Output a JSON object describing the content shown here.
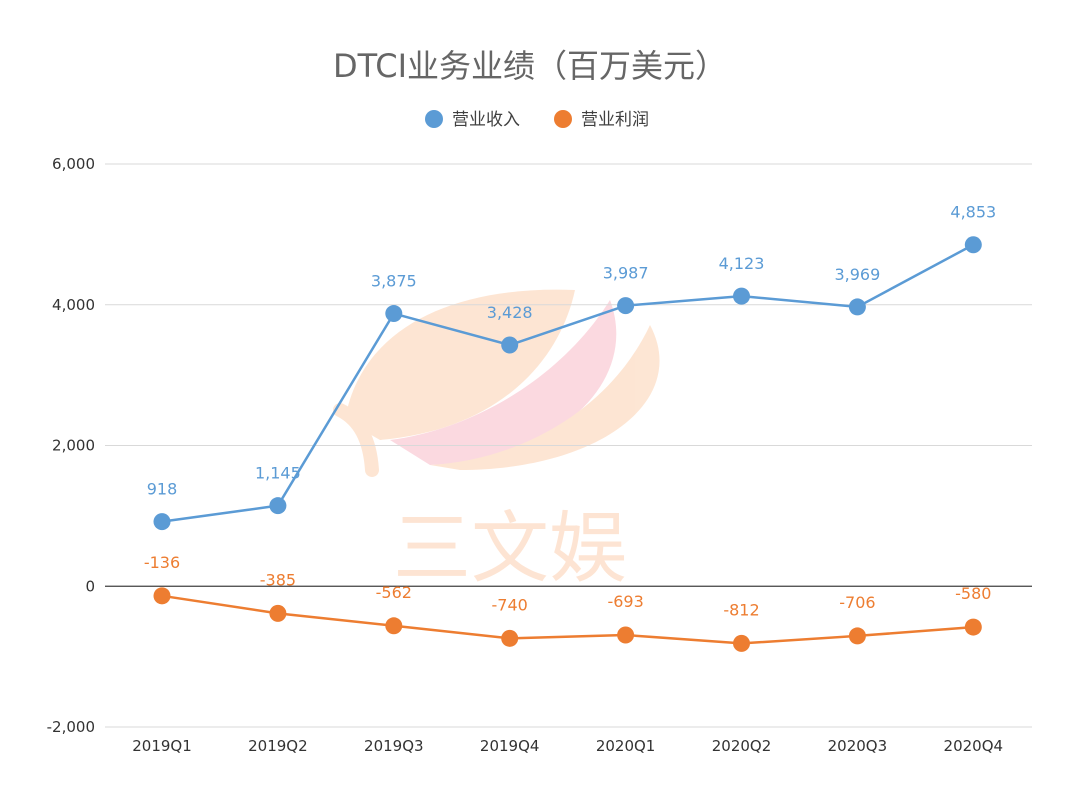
{
  "chart_data": {
    "type": "line",
    "title": "DTCI业务业绩（百万美元）",
    "categories": [
      "2019Q1",
      "2019Q2",
      "2019Q3",
      "2019Q4",
      "2020Q1",
      "2020Q2",
      "2020Q3",
      "2020Q4"
    ],
    "series": [
      {
        "name": "营业收入",
        "color": "#5b9bd5",
        "values": [
          918,
          1145,
          3875,
          3428,
          3987,
          4123,
          3969,
          4853
        ],
        "labels": [
          "918",
          "1,145",
          "3,875",
          "3,428",
          "3,987",
          "4,123",
          "3,969",
          "4,853"
        ]
      },
      {
        "name": "营业利润",
        "color": "#ed7d31",
        "values": [
          -136,
          -385,
          -562,
          -740,
          -693,
          -812,
          -706,
          -580
        ],
        "labels": [
          "-136",
          "-385",
          "-562",
          "-740",
          "-693",
          "-812",
          "-706",
          "-580"
        ]
      }
    ],
    "ylim": [
      -2000,
      6000
    ],
    "yticks": [
      6000,
      4000,
      2000,
      0,
      -2000
    ],
    "ytick_labels": [
      "6,000",
      "4,000",
      "2,000",
      "0",
      "-2,000"
    ],
    "grid": true,
    "legend_position": "top-center"
  },
  "watermark": {
    "text": "三文娱"
  }
}
